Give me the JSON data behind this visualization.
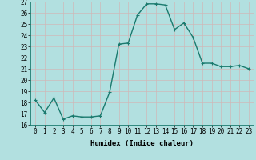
{
  "x": [
    0,
    1,
    2,
    3,
    4,
    5,
    6,
    7,
    8,
    9,
    10,
    11,
    12,
    13,
    14,
    15,
    16,
    17,
    18,
    19,
    20,
    21,
    22,
    23
  ],
  "y": [
    18.2,
    17.1,
    18.4,
    16.5,
    16.8,
    16.7,
    16.7,
    16.8,
    18.9,
    23.2,
    23.3,
    25.8,
    26.8,
    26.8,
    26.7,
    24.5,
    25.1,
    23.8,
    21.5,
    21.5,
    21.2,
    21.2,
    21.3,
    21.0
  ],
  "line_color": "#1a7a6e",
  "marker": "+",
  "marker_size": 3,
  "linewidth": 1.0,
  "background_color": "#b2e0e0",
  "grid_color": "#d0b8b8",
  "xlabel": "Humidex (Indice chaleur)",
  "ylabel": "",
  "ylim": [
    16,
    27
  ],
  "xlim": [
    -0.5,
    23.5
  ],
  "yticks": [
    16,
    17,
    18,
    19,
    20,
    21,
    22,
    23,
    24,
    25,
    26,
    27
  ],
  "xticks": [
    0,
    1,
    2,
    3,
    4,
    5,
    6,
    7,
    8,
    9,
    10,
    11,
    12,
    13,
    14,
    15,
    16,
    17,
    18,
    19,
    20,
    21,
    22,
    23
  ],
  "xlabel_fontsize": 6.5,
  "tick_fontsize": 5.5,
  "title": ""
}
